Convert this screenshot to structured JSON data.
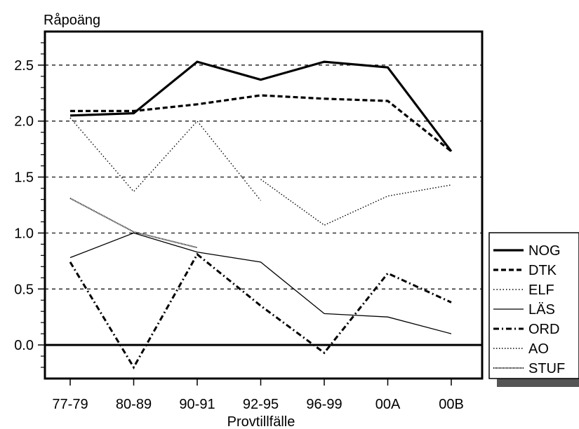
{
  "chart_data": {
    "type": "line",
    "ylabel": "Råpoäng",
    "xlabel": "Provtillfälle",
    "categories": [
      "77-79",
      "80-89",
      "90-91",
      "92-95",
      "96-99",
      "00A",
      "00B"
    ],
    "ylim": [
      -0.3,
      2.8
    ],
    "yticks": [
      0.0,
      0.5,
      1.0,
      1.5,
      2.0,
      2.5
    ],
    "ytick_labels": [
      "0.0",
      "0.5",
      "1.0",
      "1.5",
      "2.0",
      "2.5"
    ],
    "grid": "horizontal dashed at y ticks",
    "legend_position": "right",
    "series": [
      {
        "name": "NOG",
        "style": "solid-thick",
        "values": [
          2.05,
          2.07,
          2.53,
          2.37,
          2.53,
          2.48,
          1.73
        ]
      },
      {
        "name": "DTK",
        "style": "dashed-thick",
        "values": [
          2.09,
          2.09,
          2.15,
          2.23,
          2.2,
          2.18,
          1.73
        ]
      },
      {
        "name": "ELF",
        "style": "dotted",
        "values": [
          2.03,
          1.37,
          2.0,
          1.29,
          null,
          null,
          null
        ]
      },
      {
        "name": "LÄS",
        "style": "solid-thin",
        "values": [
          0.78,
          1.0,
          0.83,
          0.74,
          0.28,
          0.25,
          0.1
        ]
      },
      {
        "name": "ORD",
        "style": "dash-dot",
        "values": [
          0.74,
          -0.2,
          0.81,
          0.35,
          -0.07,
          0.64,
          0.38
        ]
      },
      {
        "name": "AO",
        "style": "fine-dotted",
        "values": [
          null,
          null,
          null,
          1.48,
          1.07,
          1.33,
          1.43
        ]
      },
      {
        "name": "STUF",
        "style": "dense-dotted",
        "values": [
          1.31,
          1.01,
          0.87,
          null,
          null,
          null,
          null
        ]
      }
    ]
  }
}
